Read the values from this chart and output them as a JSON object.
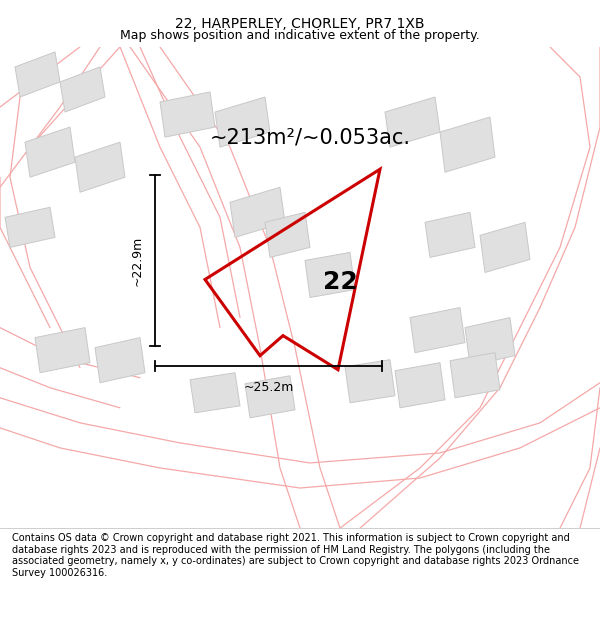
{
  "title": "22, HARPERLEY, CHORLEY, PR7 1XB",
  "subtitle": "Map shows position and indicative extent of the property.",
  "area_text": "~213m²/~0.053ac.",
  "property_number": "22",
  "dim_height": "~22.9m",
  "dim_width": "~25.2m",
  "bg_color": "#ffffff",
  "map_bg": "#ffffff",
  "footer_text": "Contains OS data © Crown copyright and database right 2021. This information is subject to Crown copyright and database rights 2023 and is reproduced with the permission of HM Land Registry. The polygons (including the associated geometry, namely x, y co-ordinates) are subject to Crown copyright and database rights 2023 Ordnance Survey 100026316.",
  "light_red": "#f5a8a8",
  "dark_red": "#cc0000",
  "building_color": "#e0e0e0",
  "building_edge": "#c8c8c8",
  "dim_line_color": "#000000",
  "title_fontsize": 10,
  "subtitle_fontsize": 9,
  "area_fontsize": 15,
  "number_fontsize": 18,
  "dim_fontsize": 9,
  "footer_fontsize": 7
}
